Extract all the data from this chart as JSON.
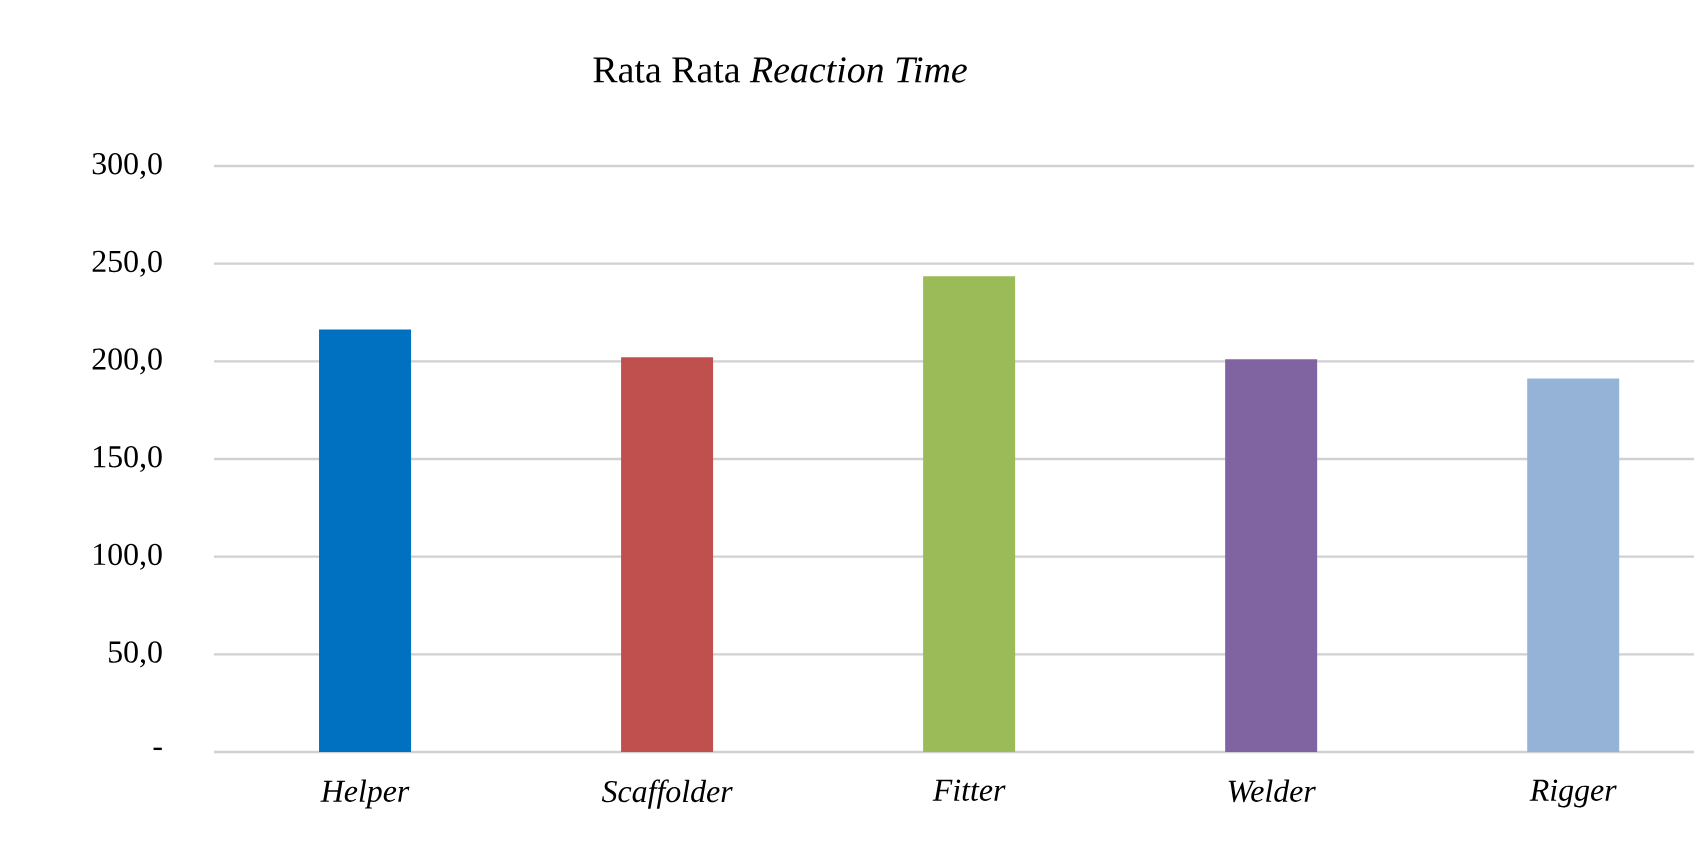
{
  "chart_data": {
    "type": "bar",
    "title": "Rata Rata *Reaction Time*",
    "categories": [
      "Helper",
      "Scaffolder",
      "Fitter",
      "Welder",
      "Rigger"
    ],
    "values": [
      216.3,
      202.1,
      243.5,
      201.1,
      191.2
    ],
    "colors": [
      "#0070c0",
      "#c0504d",
      "#9bbb59",
      "#8064a2",
      "#95b3d7"
    ],
    "ylim": [
      0,
      300
    ],
    "yticks": [
      {
        "value": 0,
        "label": "-"
      },
      {
        "value": 50,
        "label": "50,0"
      },
      {
        "value": 100,
        "label": "100,0"
      },
      {
        "value": 150,
        "label": "150,0"
      },
      {
        "value": 200,
        "label": "200,0"
      },
      {
        "value": 250,
        "label": "250,0"
      },
      {
        "value": 300,
        "label": "300,0"
      }
    ],
    "grid": "y"
  }
}
